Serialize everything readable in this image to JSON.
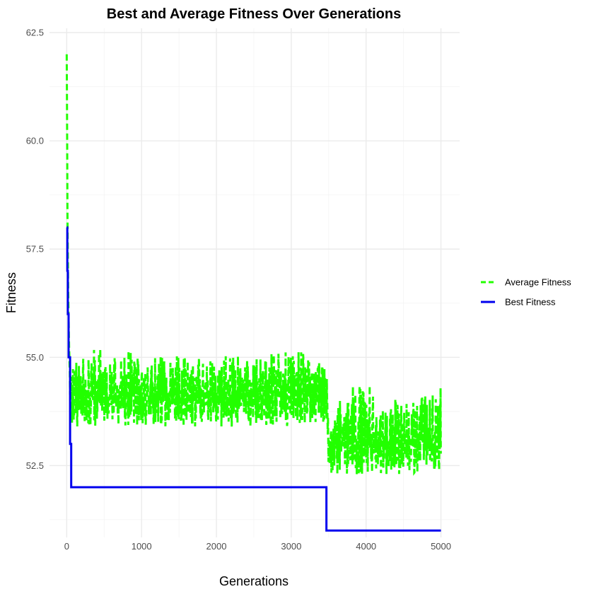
{
  "chart_data": {
    "type": "line",
    "title": "Best and Average Fitness Over Generations",
    "xlabel": "Generations",
    "ylabel": "Fitness",
    "xlim": [
      -230,
      5250
    ],
    "ylim": [
      50.84,
      62.6
    ],
    "xticks": [
      0,
      1000,
      2000,
      3000,
      4000,
      5000
    ],
    "xtick_labels": [
      "0",
      "1000",
      "2000",
      "3000",
      "4000",
      "5000"
    ],
    "yticks": [
      52.5,
      55.0,
      57.5,
      60.0,
      62.5
    ],
    "ytick_labels": [
      "52.5",
      "55.0",
      "57.5",
      "60.0",
      "62.5"
    ],
    "grid": true,
    "legend_position": "right",
    "series": [
      {
        "name": "Average Fitness",
        "color": "#22ff00",
        "linestyle": "dashed",
        "x": [
          0,
          5,
          10,
          20,
          30,
          40,
          50,
          60,
          80,
          100,
          200,
          300,
          400,
          500,
          600,
          700,
          800,
          900,
          1000,
          1200,
          1400,
          1600,
          1800,
          2000,
          2200,
          2400,
          2600,
          2800,
          3000,
          3200,
          3400,
          3460,
          3500,
          3600,
          3800,
          4000,
          4200,
          4400,
          4600,
          4800,
          5000
        ],
        "y": [
          62.0,
          60.5,
          58.2,
          56.5,
          55.4,
          54.7,
          54.3,
          54.2,
          54.1,
          54.1,
          54.1,
          54.1,
          54.2,
          54.1,
          54.1,
          54.0,
          54.1,
          54.1,
          54.1,
          54.1,
          54.1,
          54.1,
          54.1,
          54.1,
          54.1,
          54.1,
          54.2,
          54.1,
          54.1,
          54.1,
          54.1,
          53.9,
          53.0,
          53.1,
          53.1,
          53.1,
          53.1,
          53.0,
          53.1,
          53.0,
          53.0
        ],
        "band_lower": [
          62.0,
          60.5,
          58.2,
          56.5,
          55.4,
          54.2,
          53.6,
          53.5,
          53.4,
          53.4,
          53.4,
          53.4,
          53.4,
          53.4,
          53.4,
          53.4,
          53.4,
          53.4,
          53.4,
          53.4,
          53.4,
          53.4,
          53.4,
          53.4,
          53.4,
          53.4,
          53.4,
          53.4,
          53.4,
          53.5,
          53.5,
          53.3,
          52.3,
          52.3,
          52.3,
          52.3,
          52.3,
          52.3,
          52.3,
          52.3,
          52.4
        ],
        "band_upper": [
          62.0,
          60.5,
          58.2,
          56.5,
          55.4,
          54.9,
          54.9,
          54.9,
          54.9,
          55.0,
          55.0,
          55.0,
          55.4,
          55.0,
          55.0,
          55.0,
          55.3,
          55.0,
          55.0,
          55.0,
          55.1,
          55.0,
          55.0,
          55.0,
          55.1,
          55.0,
          55.1,
          55.1,
          55.2,
          55.1,
          54.9,
          54.7,
          54.2,
          54.0,
          54.3,
          54.5,
          54.0,
          54.1,
          54.0,
          54.2,
          54.3
        ]
      },
      {
        "name": "Best Fitness",
        "color": "#0000ee",
        "linestyle": "solid",
        "step": true,
        "x": [
          0,
          8,
          15,
          25,
          45,
          60,
          3460,
          3470,
          5000
        ],
        "y": [
          58.0,
          57.0,
          56.0,
          55.0,
          53.0,
          52.0,
          52.0,
          51.0,
          51.0
        ]
      }
    ]
  }
}
